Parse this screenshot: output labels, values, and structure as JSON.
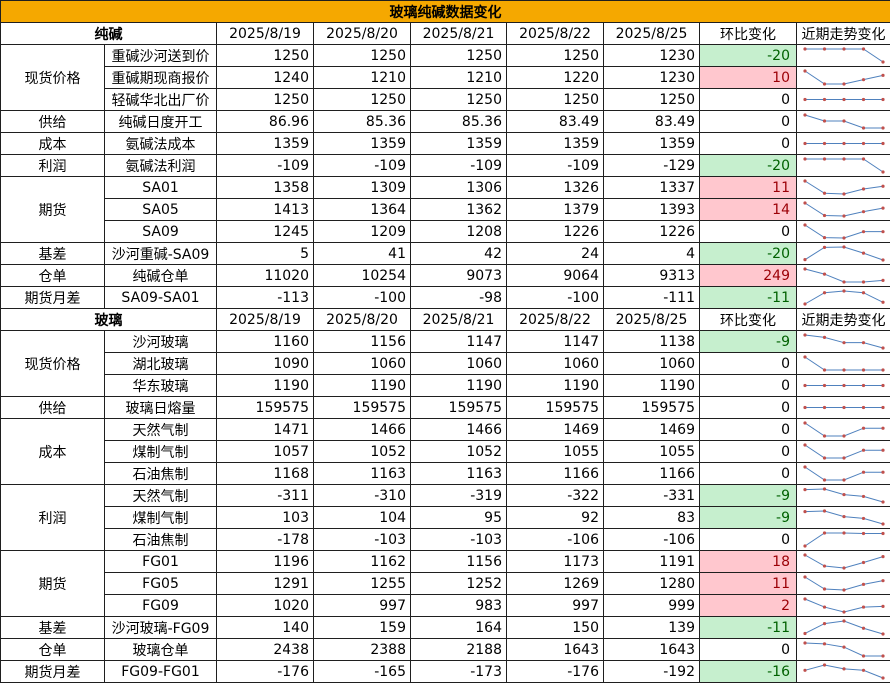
{
  "title": "玻璃纯碱数据变化",
  "dates": [
    "2025/8/19",
    "2025/8/20",
    "2025/8/21",
    "2025/8/22",
    "2025/8/25"
  ],
  "change_label": "环比变化",
  "trend_label": "近期走势变化",
  "colors": {
    "title_bg": "#f5a800",
    "neg_bg": "#c6efce",
    "neg_fg": "#006100",
    "pos_bg": "#ffc7ce",
    "pos_fg": "#9c0006",
    "spark_line": "#4f81bd",
    "spark_marker": "#c0504d"
  },
  "sections": [
    {
      "name": "纯碱",
      "groups": [
        {
          "category": "现货价格",
          "rows": [
            {
              "item": "重碱沙河送到价",
              "values": [
                1250,
                1250,
                1250,
                1250,
                1230
              ],
              "change": -20
            },
            {
              "item": "重碱期现商报价",
              "values": [
                1240,
                1210,
                1210,
                1220,
                1230
              ],
              "change": 10
            },
            {
              "item": "轻碱华北出厂价",
              "values": [
                1250,
                1250,
                1250,
                1250,
                1250
              ],
              "change": 0
            }
          ]
        },
        {
          "category": "供给",
          "rows": [
            {
              "item": "纯碱日度开工",
              "values": [
                86.96,
                85.36,
                85.36,
                83.49,
                83.49
              ],
              "change": 0
            }
          ]
        },
        {
          "category": "成本",
          "rows": [
            {
              "item": "氨碱法成本",
              "values": [
                1359,
                1359,
                1359,
                1359,
                1359
              ],
              "change": 0
            }
          ]
        },
        {
          "category": "利润",
          "rows": [
            {
              "item": "氨碱法利润",
              "values": [
                -109,
                -109,
                -109,
                -109,
                -129
              ],
              "change": -20
            }
          ]
        },
        {
          "category": "期货",
          "rows": [
            {
              "item": "SA01",
              "values": [
                1358,
                1309,
                1306,
                1326,
                1337
              ],
              "change": 11
            },
            {
              "item": "SA05",
              "values": [
                1413,
                1364,
                1362,
                1379,
                1393
              ],
              "change": 14
            },
            {
              "item": "SA09",
              "values": [
                1245,
                1209,
                1208,
                1226,
                1226
              ],
              "change": 0
            }
          ]
        },
        {
          "category": "基差",
          "rows": [
            {
              "item": "沙河重碱-SA09",
              "values": [
                5,
                41,
                42,
                24,
                4
              ],
              "change": -20
            }
          ]
        },
        {
          "category": "仓单",
          "rows": [
            {
              "item": "纯碱仓单",
              "values": [
                11020,
                10254,
                9073,
                9064,
                9313
              ],
              "change": 249
            }
          ]
        },
        {
          "category": "期货月差",
          "rows": [
            {
              "item": "SA09-SA01",
              "values": [
                -113,
                -100,
                -98,
                -100,
                -111
              ],
              "change": -11
            }
          ]
        }
      ]
    },
    {
      "name": "玻璃",
      "groups": [
        {
          "category": "现货价格",
          "rows": [
            {
              "item": "沙河玻璃",
              "values": [
                1160,
                1156,
                1147,
                1147,
                1138
              ],
              "change": -9
            },
            {
              "item": "湖北玻璃",
              "values": [
                1090,
                1060,
                1060,
                1060,
                1060
              ],
              "change": 0
            },
            {
              "item": "华东玻璃",
              "values": [
                1190,
                1190,
                1190,
                1190,
                1190
              ],
              "change": 0
            }
          ]
        },
        {
          "category": "供给",
          "rows": [
            {
              "item": "玻璃日熔量",
              "values": [
                159575,
                159575,
                159575,
                159575,
                159575
              ],
              "change": 0
            }
          ]
        },
        {
          "category": "成本",
          "rows": [
            {
              "item": "天然气制",
              "values": [
                1471,
                1466,
                1466,
                1469,
                1469
              ],
              "change": 0
            },
            {
              "item": "煤制气制",
              "values": [
                1057,
                1052,
                1052,
                1055,
                1055
              ],
              "change": 0
            },
            {
              "item": "石油焦制",
              "values": [
                1168,
                1163,
                1163,
                1166,
                1166
              ],
              "change": 0
            }
          ]
        },
        {
          "category": "利润",
          "rows": [
            {
              "item": "天然气制",
              "values": [
                -311,
                -310,
                -319,
                -322,
                -331
              ],
              "change": -9
            },
            {
              "item": "煤制气制",
              "values": [
                103,
                104,
                95,
                92,
                83
              ],
              "change": -9
            },
            {
              "item": "石油焦制",
              "values": [
                -178,
                -103,
                -103,
                -106,
                -106
              ],
              "change": 0
            }
          ]
        },
        {
          "category": "期货",
          "rows": [
            {
              "item": "FG01",
              "values": [
                1196,
                1162,
                1156,
                1173,
                1191
              ],
              "change": 18
            },
            {
              "item": "FG05",
              "values": [
                1291,
                1255,
                1252,
                1269,
                1280
              ],
              "change": 11
            },
            {
              "item": "FG09",
              "values": [
                1020,
                997,
                983,
                997,
                999
              ],
              "change": 2
            }
          ]
        },
        {
          "category": "基差",
          "rows": [
            {
              "item": "沙河玻璃-FG09",
              "values": [
                140,
                159,
                164,
                150,
                139
              ],
              "change": -11
            }
          ]
        },
        {
          "category": "仓单",
          "rows": [
            {
              "item": "玻璃仓单",
              "values": [
                2438,
                2388,
                2188,
                1643,
                1643
              ],
              "change": 0
            }
          ]
        },
        {
          "category": "期货月差",
          "rows": [
            {
              "item": "FG09-FG01",
              "values": [
                -176,
                -165,
                -173,
                -176,
                -192
              ],
              "change": -16
            }
          ]
        }
      ]
    }
  ]
}
